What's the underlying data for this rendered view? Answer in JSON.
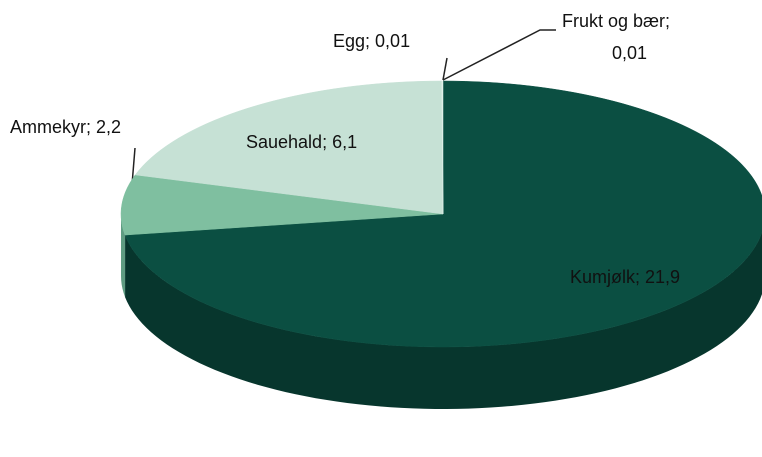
{
  "chart_data": {
    "type": "pie3d",
    "categories": [
      "Kumjølk",
      "Ammekyr",
      "Sauehald",
      "Egg",
      "Frukt og bær"
    ],
    "values": [
      21.9,
      2.2,
      6.1,
      0.01,
      0.01
    ],
    "value_labels": [
      "21,9",
      "2,2",
      "6,1",
      "0,01",
      "0,01"
    ],
    "label_separator": "; ",
    "colors": [
      "#0b4f42",
      "#7fbfa0",
      "#c6e1d5",
      "#d8ece3",
      "#e2f0ea"
    ],
    "side_colors": [
      "#07362d",
      "#5f9c82",
      "#a9c9bb",
      "#b9d7ca",
      "#c8dfd5"
    ]
  }
}
